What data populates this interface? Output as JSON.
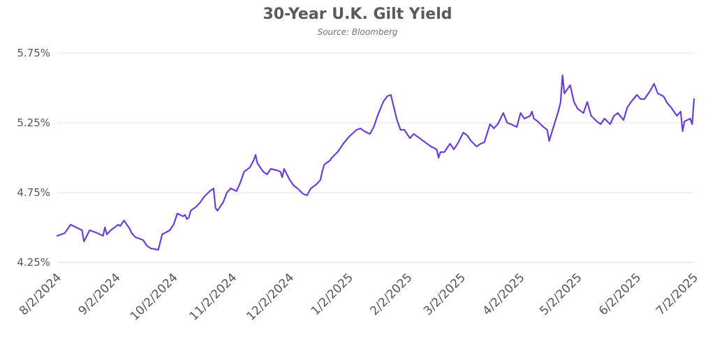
{
  "chart_data": {
    "type": "line",
    "title": "30-Year U.K. Gilt Yield",
    "subtitle": "Source: Bloomberg",
    "xlabel": "",
    "ylabel": "",
    "ylim": [
      4.25,
      5.75
    ],
    "y_ticks": [
      "4.25%",
      "4.75%",
      "5.25%",
      "5.75%"
    ],
    "y_tick_values": [
      4.25,
      4.75,
      5.25,
      5.75
    ],
    "x_ticks": [
      "8/2/2024",
      "9/2/2024",
      "10/2/2024",
      "11/2/2024",
      "12/2/2024",
      "1/2/2025",
      "2/2/2025",
      "3/2/2025",
      "4/2/2025",
      "5/2/2025",
      "6/2/2025",
      "7/2/2025"
    ],
    "grid": "horizontal",
    "line_color": "#6a3fd6",
    "series": [
      {
        "values": [
          [
            "2024-08-02",
            4.44
          ],
          [
            "2024-08-06",
            4.46
          ],
          [
            "2024-08-09",
            4.52
          ],
          [
            "2024-08-12",
            4.5
          ],
          [
            "2024-08-15",
            4.48
          ],
          [
            "2024-08-16",
            4.4
          ],
          [
            "2024-08-19",
            4.48
          ],
          [
            "2024-08-23",
            4.46
          ],
          [
            "2024-08-26",
            4.44
          ],
          [
            "2024-08-27",
            4.5
          ],
          [
            "2024-08-28",
            4.45
          ],
          [
            "2024-08-30",
            4.48
          ],
          [
            "2024-09-03",
            4.52
          ],
          [
            "2024-09-04",
            4.51
          ],
          [
            "2024-09-06",
            4.55
          ],
          [
            "2024-09-09",
            4.49
          ],
          [
            "2024-09-10",
            4.46
          ],
          [
            "2024-09-12",
            4.43
          ],
          [
            "2024-09-16",
            4.41
          ],
          [
            "2024-09-18",
            4.37
          ],
          [
            "2024-09-20",
            4.35
          ],
          [
            "2024-09-24",
            4.34
          ],
          [
            "2024-09-26",
            4.45
          ],
          [
            "2024-09-30",
            4.48
          ],
          [
            "2024-10-02",
            4.52
          ],
          [
            "2024-10-04",
            4.6
          ],
          [
            "2024-10-07",
            4.58
          ],
          [
            "2024-10-08",
            4.59
          ],
          [
            "2024-10-09",
            4.56
          ],
          [
            "2024-10-10",
            4.57
          ],
          [
            "2024-10-11",
            4.62
          ],
          [
            "2024-10-14",
            4.65
          ],
          [
            "2024-10-16",
            4.68
          ],
          [
            "2024-10-18",
            4.72
          ],
          [
            "2024-10-21",
            4.76
          ],
          [
            "2024-10-23",
            4.78
          ],
          [
            "2024-10-24",
            4.64
          ],
          [
            "2024-10-25",
            4.62
          ],
          [
            "2024-10-28",
            4.68
          ],
          [
            "2024-10-30",
            4.75
          ],
          [
            "2024-11-01",
            4.78
          ],
          [
            "2024-11-04",
            4.76
          ],
          [
            "2024-11-06",
            4.82
          ],
          [
            "2024-11-08",
            4.9
          ],
          [
            "2024-11-11",
            4.93
          ],
          [
            "2024-11-13",
            4.98
          ],
          [
            "2024-11-14",
            5.02
          ],
          [
            "2024-11-15",
            4.96
          ],
          [
            "2024-11-18",
            4.9
          ],
          [
            "2024-11-20",
            4.88
          ],
          [
            "2024-11-22",
            4.92
          ],
          [
            "2024-11-25",
            4.91
          ],
          [
            "2024-11-27",
            4.9
          ],
          [
            "2024-11-28",
            4.86
          ],
          [
            "2024-11-29",
            4.92
          ],
          [
            "2024-12-02",
            4.84
          ],
          [
            "2024-12-04",
            4.8
          ],
          [
            "2024-12-06",
            4.78
          ],
          [
            "2024-12-09",
            4.74
          ],
          [
            "2024-12-11",
            4.73
          ],
          [
            "2024-12-13",
            4.78
          ],
          [
            "2024-12-16",
            4.81
          ],
          [
            "2024-12-18",
            4.84
          ],
          [
            "2024-12-19",
            4.9
          ],
          [
            "2024-12-20",
            4.95
          ],
          [
            "2024-12-23",
            4.98
          ],
          [
            "2024-12-24",
            5.0
          ],
          [
            "2024-12-27",
            5.04
          ],
          [
            "2024-12-30",
            5.1
          ],
          [
            "2025-01-02",
            5.15
          ],
          [
            "2025-01-06",
            5.2
          ],
          [
            "2025-01-08",
            5.21
          ],
          [
            "2025-01-10",
            5.19
          ],
          [
            "2025-01-13",
            5.17
          ],
          [
            "2025-01-15",
            5.22
          ],
          [
            "2025-01-17",
            5.3
          ],
          [
            "2025-01-20",
            5.4
          ],
          [
            "2025-01-22",
            5.44
          ],
          [
            "2025-01-24",
            5.45
          ],
          [
            "2025-01-27",
            5.28
          ],
          [
            "2025-01-29",
            5.2
          ],
          [
            "2025-01-31",
            5.2
          ],
          [
            "2025-02-03",
            5.14
          ],
          [
            "2025-02-05",
            5.17
          ],
          [
            "2025-02-07",
            5.15
          ],
          [
            "2025-02-10",
            5.12
          ],
          [
            "2025-02-12",
            5.1
          ],
          [
            "2025-02-14",
            5.08
          ],
          [
            "2025-02-17",
            5.06
          ],
          [
            "2025-02-18",
            5.0
          ],
          [
            "2025-02-19",
            5.04
          ],
          [
            "2025-02-21",
            5.04
          ],
          [
            "2025-02-24",
            5.1
          ],
          [
            "2025-02-26",
            5.06
          ],
          [
            "2025-02-28",
            5.1
          ],
          [
            "2025-03-03",
            5.18
          ],
          [
            "2025-03-05",
            5.16
          ],
          [
            "2025-03-07",
            5.12
          ],
          [
            "2025-03-10",
            5.08
          ],
          [
            "2025-03-12",
            5.1
          ],
          [
            "2025-03-14",
            5.11
          ],
          [
            "2025-03-17",
            5.24
          ],
          [
            "2025-03-19",
            5.21
          ],
          [
            "2025-03-21",
            5.24
          ],
          [
            "2025-03-24",
            5.32
          ],
          [
            "2025-03-26",
            5.25
          ],
          [
            "2025-03-28",
            5.24
          ],
          [
            "2025-03-31",
            5.22
          ],
          [
            "2025-04-02",
            5.32
          ],
          [
            "2025-04-04",
            5.28
          ],
          [
            "2025-04-07",
            5.3
          ],
          [
            "2025-04-08",
            5.33
          ],
          [
            "2025-04-09",
            5.28
          ],
          [
            "2025-04-11",
            5.26
          ],
          [
            "2025-04-14",
            5.22
          ],
          [
            "2025-04-16",
            5.2
          ],
          [
            "2025-04-17",
            5.12
          ],
          [
            "2025-04-22",
            5.34
          ],
          [
            "2025-04-23",
            5.4
          ],
          [
            "2025-04-24",
            5.59
          ],
          [
            "2025-04-25",
            5.46
          ],
          [
            "2025-04-28",
            5.52
          ],
          [
            "2025-04-30",
            5.4
          ],
          [
            "2025-05-02",
            5.35
          ],
          [
            "2025-05-05",
            5.32
          ],
          [
            "2025-05-07",
            5.4
          ],
          [
            "2025-05-09",
            5.3
          ],
          [
            "2025-05-12",
            5.26
          ],
          [
            "2025-05-14",
            5.24
          ],
          [
            "2025-05-16",
            5.28
          ],
          [
            "2025-05-19",
            5.24
          ],
          [
            "2025-05-21",
            5.3
          ],
          [
            "2025-05-23",
            5.32
          ],
          [
            "2025-05-26",
            5.27
          ],
          [
            "2025-05-28",
            5.36
          ],
          [
            "2025-05-30",
            5.4
          ],
          [
            "2025-06-02",
            5.45
          ],
          [
            "2025-06-04",
            5.42
          ],
          [
            "2025-06-06",
            5.42
          ],
          [
            "2025-06-09",
            5.48
          ],
          [
            "2025-06-11",
            5.53
          ],
          [
            "2025-06-13",
            5.46
          ],
          [
            "2025-06-16",
            5.44
          ],
          [
            "2025-06-18",
            5.39
          ],
          [
            "2025-06-20",
            5.36
          ],
          [
            "2025-06-23",
            5.3
          ],
          [
            "2025-06-25",
            5.33
          ],
          [
            "2025-06-26",
            5.19
          ],
          [
            "2025-06-27",
            5.26
          ],
          [
            "2025-06-30",
            5.28
          ],
          [
            "2025-07-01",
            5.24
          ],
          [
            "2025-07-02",
            5.42
          ]
        ]
      }
    ]
  }
}
